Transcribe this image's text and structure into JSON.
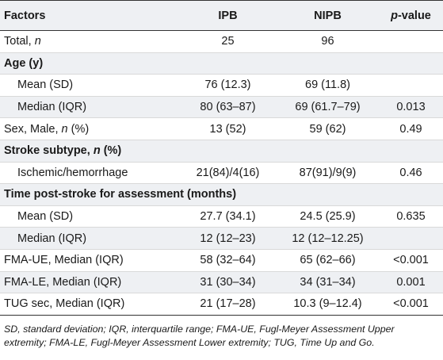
{
  "header": {
    "col_factors": "Factors",
    "col_ipb": "IPB",
    "col_nipb": "NIPB",
    "col_p_italic": "p",
    "col_p_rest": "-value"
  },
  "rows": [
    {
      "label": "Total, ",
      "label_italic": "n",
      "label_after": "",
      "ipb": "25",
      "nipb": "96",
      "p": ""
    },
    {
      "label": "Age (y)",
      "section": true
    },
    {
      "label": "Mean (SD)",
      "ipb": "76 (12.3)",
      "nipb": "69 (11.8)",
      "p": ""
    },
    {
      "label": "Median (IQR)",
      "ipb": "80 (63–87)",
      "nipb": "69 (61.7–79)",
      "p": "0.013"
    },
    {
      "label": "Sex, Male, ",
      "label_italic": "n",
      "label_after": " (%)",
      "ipb": "13 (52)",
      "nipb": "59 (62)",
      "p": "0.49"
    },
    {
      "label": "Stroke subtype, ",
      "label_italic": "n",
      "label_after": " (%)",
      "section": true
    },
    {
      "label": "Ischemic/hemorrhage",
      "ipb": "21(84)/4(16)",
      "nipb": "87(91)/9(9)",
      "p": "0.46"
    },
    {
      "label": "Time post-stroke for assessment (months)",
      "section": true
    },
    {
      "label": "Mean (SD)",
      "ipb": "27.7 (34.1)",
      "nipb": "24.5 (25.9)",
      "p": "0.635"
    },
    {
      "label": "Median (IQR)",
      "ipb": "12 (12–23)",
      "nipb": "12 (12–12.25)",
      "p": ""
    },
    {
      "label": "FMA-UE, Median (IQR)",
      "ipb": "58 (32–64)",
      "nipb": "65 (62–66)",
      "p": "<0.001"
    },
    {
      "label": "FMA-LE, Median (IQR)",
      "ipb": "31 (30–34)",
      "nipb": "34 (31–34)",
      "p": "0.001"
    },
    {
      "label": "TUG sec, Median (IQR)",
      "ipb": "21 (17–28)",
      "nipb": "10.3 (9–12.4)",
      "p": "<0.001"
    }
  ],
  "footnote": "SD, standard deviation; IQR, interquartile range; FMA-UE, Fugl-Meyer Assessment Upper extremity; FMA-LE, Fugl-Meyer Assessment Lower extremity; TUG, Time Up and Go."
}
